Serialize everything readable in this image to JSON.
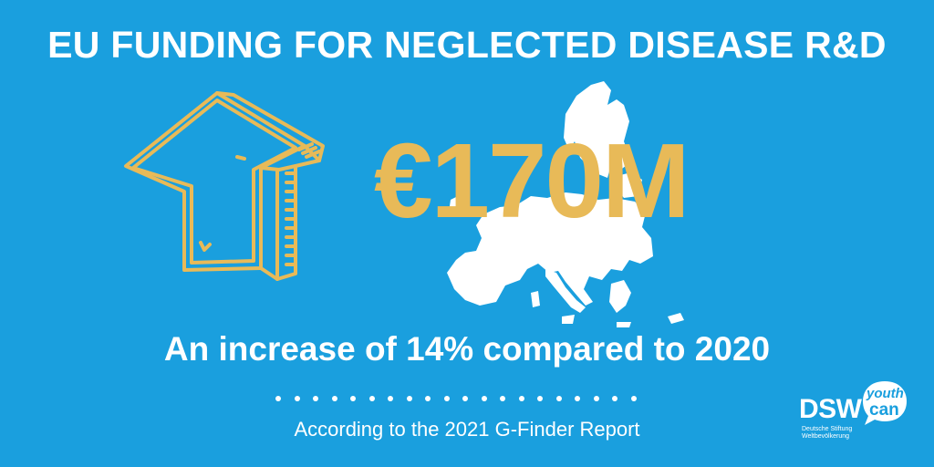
{
  "title": "EU FUNDING FOR NEGLECTED DISEASE R&D",
  "amount": "€170M",
  "subtitle": "An increase of 14% compared to 2020",
  "source": "According to the 2021 G-Finder Report",
  "logo": {
    "dsw": "DSW",
    "dsw_line1": "Deutsche Stiftung",
    "dsw_line2": "Weltbevölkerung",
    "youth": "youth",
    "can": "can"
  },
  "icons": {
    "arrow": "up-arrow-sketch-icon",
    "map": "europe-map-icon"
  },
  "colors": {
    "background": "#1a9fde",
    "accent": "#e8ba58",
    "text": "#ffffff"
  },
  "dot_count": 20
}
